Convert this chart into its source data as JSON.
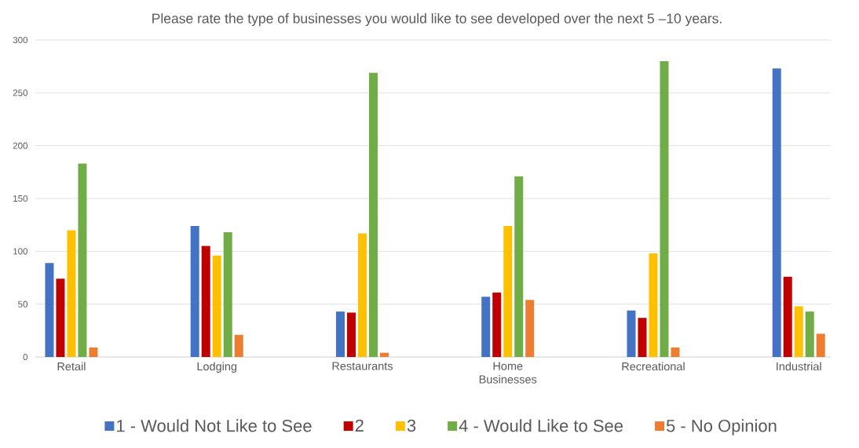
{
  "chart_data": {
    "type": "bar",
    "title": "Please rate the type of businesses you would like to see developed over the next 5 –10 years.",
    "categories": [
      "Retail",
      "Lodging",
      "Restaurants",
      "Home Businesses",
      "Recreational",
      "Industrial"
    ],
    "series": [
      {
        "name": "1 - Would Not Like to See",
        "color": "#4472c4",
        "values": [
          89,
          124,
          43,
          57,
          44,
          273
        ]
      },
      {
        "name": "2",
        "color": "#c00000",
        "values": [
          74,
          105,
          42,
          61,
          37,
          76
        ]
      },
      {
        "name": "3",
        "color": "#ffc000",
        "values": [
          120,
          96,
          117,
          124,
          98,
          48
        ]
      },
      {
        "name": "4 - Would Like to See",
        "color": "#70ad47",
        "values": [
          183,
          118,
          269,
          171,
          280,
          43
        ]
      },
      {
        "name": "5 - No Opinion",
        "color": "#ed7d31",
        "values": [
          9,
          21,
          4,
          54,
          9,
          22
        ]
      }
    ],
    "ylim": [
      0,
      300
    ],
    "yticks": [
      0,
      50,
      100,
      150,
      200,
      250,
      300
    ],
    "grid": "y",
    "legend": "bottom"
  }
}
